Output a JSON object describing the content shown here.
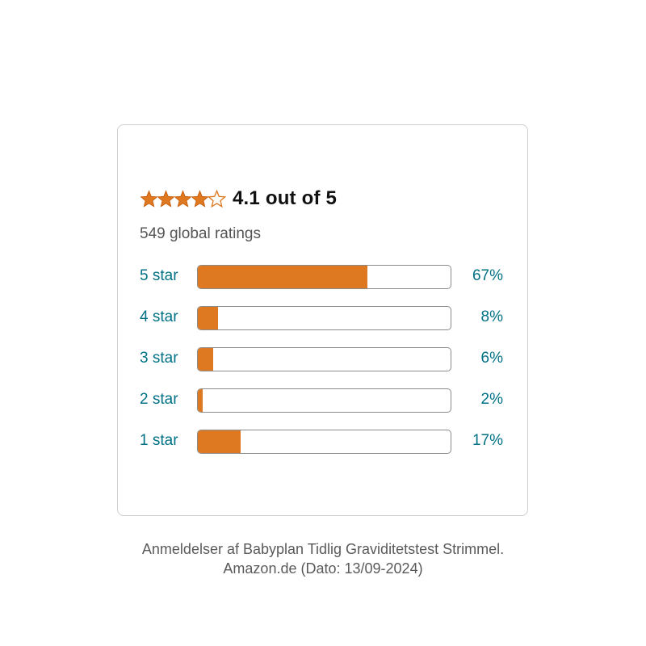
{
  "summary": {
    "average": 4.1,
    "average_text": "4.1 out of 5",
    "stars_icon": "star-rating-icon",
    "star_color": "#de7921"
  },
  "total_ratings_text": "549 global ratings",
  "histogram": [
    {
      "label": "5 star",
      "percent": 67,
      "percent_text": "67%"
    },
    {
      "label": "4 star",
      "percent": 8,
      "percent_text": "8%"
    },
    {
      "label": "3 star",
      "percent": 6,
      "percent_text": "6%"
    },
    {
      "label": "2 star",
      "percent": 2,
      "percent_text": "2%"
    },
    {
      "label": "1 star",
      "percent": 17,
      "percent_text": "17%"
    }
  ],
  "colors": {
    "bar_fill": "#de7921",
    "link": "#007185",
    "bar_border": "#888c8c"
  },
  "caption": {
    "line1": "Anmeldelser af Babyplan Tidlig Graviditetstest Strimmel.",
    "line2": "Amazon.de (Dato: 13/09-2024)"
  }
}
